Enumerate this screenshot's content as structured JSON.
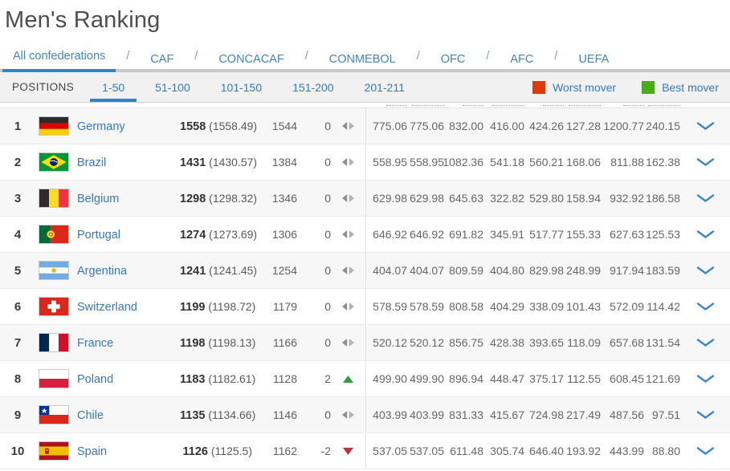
{
  "page": {
    "title": "Men's Ranking"
  },
  "confederations": {
    "separator": "/",
    "tabs": [
      {
        "label": "All confederations",
        "active": true
      },
      {
        "label": "CAF",
        "active": false
      },
      {
        "label": "CONCACAF",
        "active": false
      },
      {
        "label": "CONMEBOL",
        "active": false
      },
      {
        "label": "OFC",
        "active": false
      },
      {
        "label": "AFC",
        "active": false
      },
      {
        "label": "UEFA",
        "active": false
      }
    ]
  },
  "positions": {
    "label": "POSITIONS",
    "tabs": [
      {
        "label": "1-50",
        "active": true
      },
      {
        "label": "51-100",
        "active": false
      },
      {
        "label": "101-150",
        "active": false
      },
      {
        "label": "151-200",
        "active": false
      },
      {
        "label": "201-211",
        "active": false
      }
    ]
  },
  "legend": {
    "worst": {
      "label": "Worst mover",
      "color": "#e2380f"
    },
    "best": {
      "label": "Best mover",
      "color": "#48ae13"
    }
  },
  "colors": {
    "accent_blue": "#2d87c6",
    "link_blue": "#3878ba",
    "up_green": "#2f9e3d",
    "down_red": "#c2333e"
  },
  "chart_data": {
    "type": "table",
    "title": "Men's Ranking 1-50",
    "columns": [
      "rank",
      "country",
      "points",
      "points_exact",
      "previous_points",
      "change",
      "movement",
      "v1",
      "v2",
      "v3",
      "v4",
      "v5",
      "v6",
      "v7",
      "v8"
    ],
    "rows_note": "see table.rows"
  },
  "table": {
    "rows": [
      {
        "rank": "1",
        "country": "Germany",
        "flag": "de",
        "points": "1558",
        "points_exact": "(1558.49)",
        "prev": "1544",
        "change": "0",
        "movement": "none",
        "values": [
          "775.06",
          "775.06",
          "832.00",
          "416.00",
          "424.26",
          "127.28",
          "1200.77",
          "240.15"
        ]
      },
      {
        "rank": "2",
        "country": "Brazil",
        "flag": "br",
        "points": "1431",
        "points_exact": "(1430.57)",
        "prev": "1384",
        "change": "0",
        "movement": "none",
        "values": [
          "558.95",
          "558.95",
          "1082.36",
          "541.18",
          "560.21",
          "168.06",
          "811.88",
          "162.38"
        ]
      },
      {
        "rank": "3",
        "country": "Belgium",
        "flag": "be",
        "points": "1298",
        "points_exact": "(1298.32)",
        "prev": "1346",
        "change": "0",
        "movement": "none",
        "values": [
          "629.98",
          "629.98",
          "645.63",
          "322.82",
          "529.80",
          "158.94",
          "932.92",
          "186.58"
        ]
      },
      {
        "rank": "4",
        "country": "Portugal",
        "flag": "pt",
        "points": "1274",
        "points_exact": "(1273.69)",
        "prev": "1306",
        "change": "0",
        "movement": "none",
        "values": [
          "646.92",
          "646.92",
          "691.82",
          "345.91",
          "517.77",
          "155.33",
          "627.63",
          "125.53"
        ]
      },
      {
        "rank": "5",
        "country": "Argentina",
        "flag": "ar",
        "points": "1241",
        "points_exact": "(1241.45)",
        "prev": "1254",
        "change": "0",
        "movement": "none",
        "values": [
          "404.07",
          "404.07",
          "809.59",
          "404.80",
          "829.98",
          "248.99",
          "917.94",
          "183.59"
        ]
      },
      {
        "rank": "6",
        "country": "Switzerland",
        "flag": "ch",
        "points": "1199",
        "points_exact": "(1198.72)",
        "prev": "1179",
        "change": "0",
        "movement": "none",
        "values": [
          "578.59",
          "578.59",
          "808.58",
          "404.29",
          "338.09",
          "101.43",
          "572.09",
          "114.42"
        ]
      },
      {
        "rank": "7",
        "country": "France",
        "flag": "fr",
        "points": "1198",
        "points_exact": "(1198.13)",
        "prev": "1166",
        "change": "0",
        "movement": "none",
        "values": [
          "520.12",
          "520.12",
          "856.75",
          "428.38",
          "393.65",
          "118.09",
          "657.68",
          "131.54"
        ]
      },
      {
        "rank": "8",
        "country": "Poland",
        "flag": "pl",
        "points": "1183",
        "points_exact": "(1182.61)",
        "prev": "1128",
        "change": "2",
        "movement": "up",
        "values": [
          "499.90",
          "499.90",
          "896.94",
          "448.47",
          "375.17",
          "112.55",
          "608.45",
          "121.69"
        ]
      },
      {
        "rank": "9",
        "country": "Chile",
        "flag": "cl",
        "points": "1135",
        "points_exact": "(1134.66)",
        "prev": "1146",
        "change": "0",
        "movement": "none",
        "values": [
          "403.99",
          "403.99",
          "831.33",
          "415.67",
          "724.98",
          "217.49",
          "487.56",
          "97.51"
        ]
      },
      {
        "rank": "10",
        "country": "Spain",
        "flag": "es",
        "points": "1126",
        "points_exact": "(1125.5)",
        "prev": "1162",
        "change": "-2",
        "movement": "down",
        "values": [
          "537.05",
          "537.05",
          "611.48",
          "305.74",
          "646.40",
          "193.92",
          "443.99",
          "88.80"
        ]
      }
    ]
  }
}
